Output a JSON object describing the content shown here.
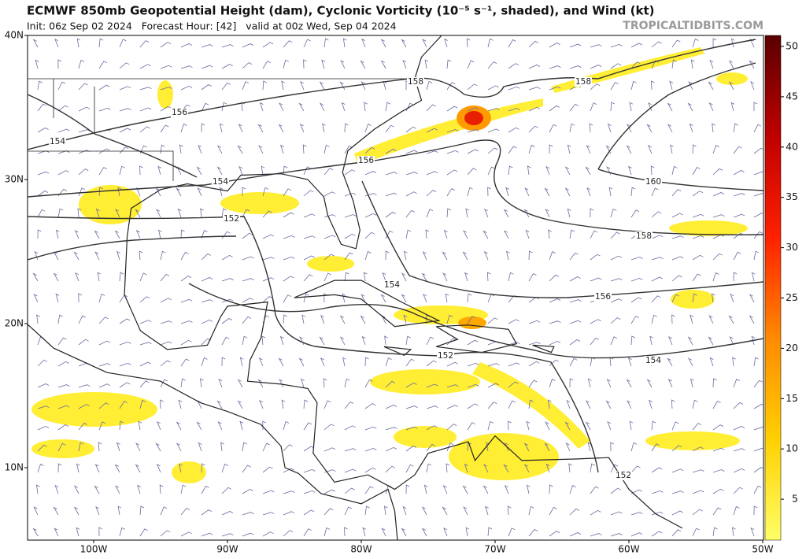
{
  "header": {
    "title": "ECMWF 850mb Geopotential Height (dam), Cyclonic Vorticity (10⁻⁵ s⁻¹, shaded), and Wind (kt)",
    "subtitle": "Init: 06z Sep 02 2024   Forecast Hour: [42]   valid at 00z Wed, Sep 04 2024",
    "watermark": "TROPICALTIDBITS.COM"
  },
  "map": {
    "lat_labels": [
      "40N",
      "30N",
      "20N",
      "10N"
    ],
    "lon_labels": [
      "100W",
      "90W",
      "80W",
      "70W",
      "60W",
      "50W"
    ],
    "contour_labels": [
      "158",
      "158",
      "156",
      "154",
      "156",
      "154",
      "160",
      "152",
      "158",
      "154",
      "156",
      "152",
      "154",
      "152"
    ]
  },
  "colorbar": {
    "ticks": [
      "50",
      "45",
      "40",
      "35",
      "30",
      "25",
      "20",
      "15",
      "10",
      "5"
    ]
  }
}
